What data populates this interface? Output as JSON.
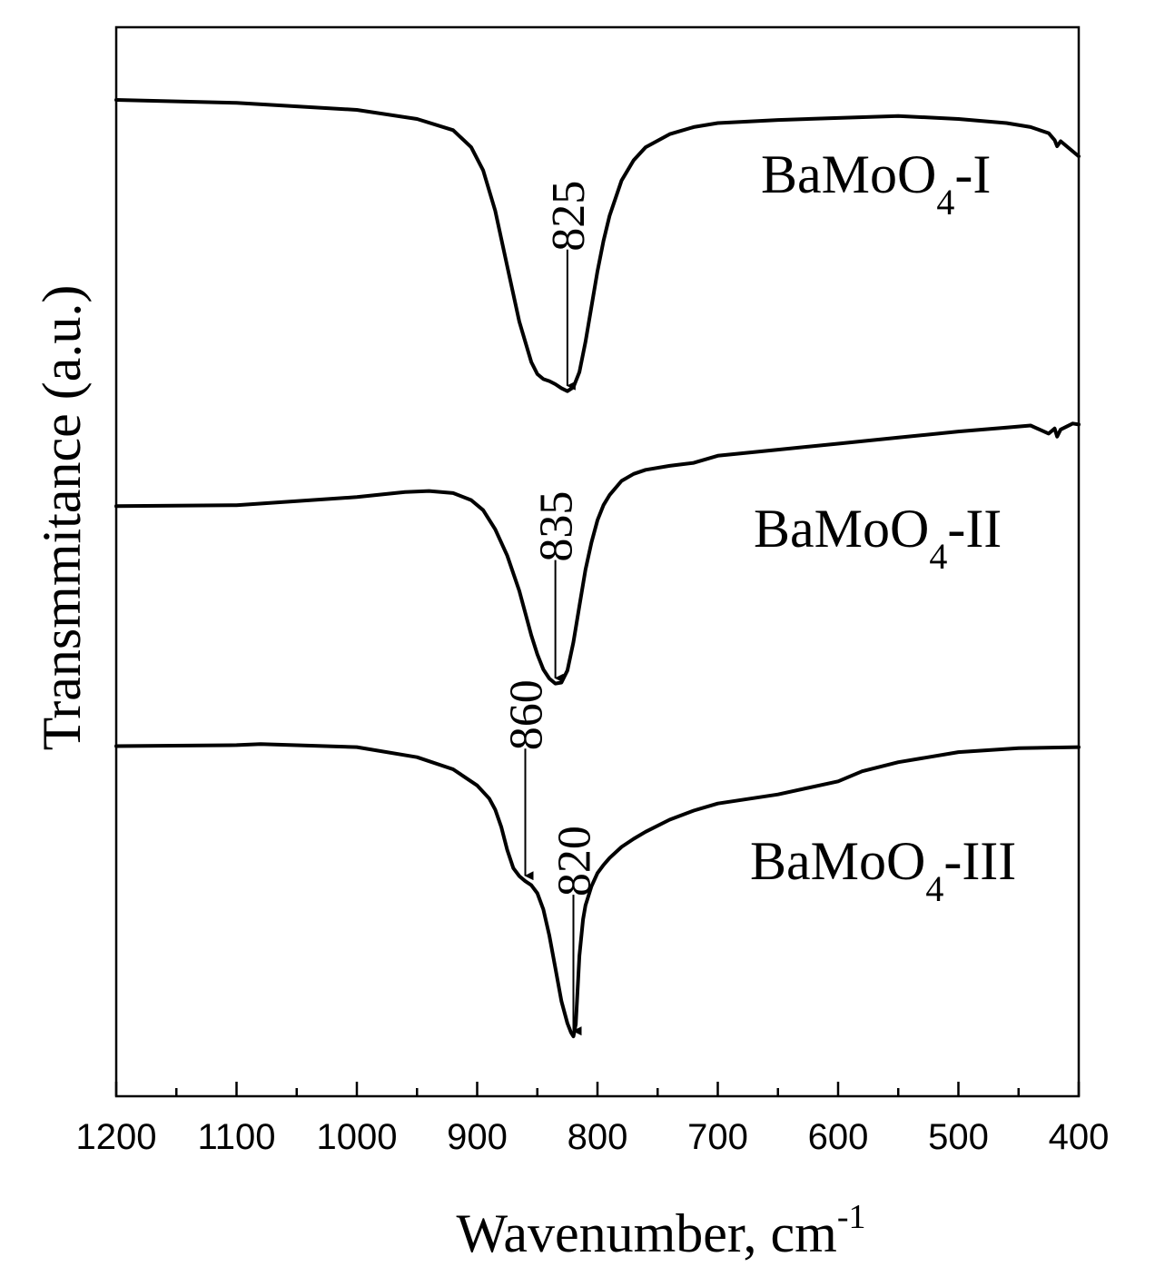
{
  "chart_data": {
    "type": "line",
    "title": "",
    "xlabel": "Wavenumber, cm",
    "xlabel_superscript": "-1",
    "ylabel": "Transmmitance (a.u.)",
    "xlim": [
      1200,
      400
    ],
    "x_reversed": true,
    "x_ticks": [
      1200,
      1100,
      1000,
      900,
      800,
      700,
      600,
      500,
      400
    ],
    "x_minor_step": 50,
    "y_ticks": false,
    "grid": false,
    "ylim": [
      0,
      100
    ],
    "series": [
      {
        "name": "BaMoO",
        "name_subscript": "4",
        "name_suffix": "-I",
        "x": [
          1200,
          1100,
          1000,
          950,
          920,
          905,
          895,
          885,
          875,
          865,
          855,
          850,
          845,
          840,
          835,
          830,
          825,
          820,
          815,
          810,
          805,
          800,
          795,
          790,
          780,
          770,
          760,
          740,
          720,
          700,
          650,
          600,
          550,
          500,
          460,
          440,
          425,
          420,
          418,
          415,
          405,
          400
        ],
        "y": [
          95.5,
          95.2,
          94.5,
          93.6,
          92.5,
          90.8,
          88.5,
          84.5,
          79,
          73.5,
          69.5,
          68.3,
          67.8,
          67.6,
          67.3,
          66.9,
          66.6,
          67,
          68.5,
          71.5,
          75,
          78.5,
          81.5,
          84,
          87.5,
          89.5,
          90.8,
          92.1,
          92.8,
          93.2,
          93.5,
          93.7,
          93.9,
          93.6,
          93.2,
          92.8,
          92.2,
          91.5,
          90.9,
          91.4,
          90.4,
          89.9
        ]
      },
      {
        "name": "BaMoO",
        "name_subscript": "4",
        "name_suffix": "-II",
        "x": [
          1200,
          1100,
          1000,
          960,
          940,
          920,
          905,
          895,
          885,
          875,
          865,
          860,
          855,
          850,
          845,
          840,
          835,
          830,
          825,
          820,
          815,
          810,
          805,
          800,
          795,
          790,
          780,
          770,
          760,
          740,
          720,
          700,
          650,
          600,
          550,
          500,
          460,
          440,
          425,
          420,
          418,
          415,
          405,
          400
        ],
        "y": [
          55.2,
          55.3,
          56.1,
          56.6,
          56.7,
          56.5,
          55.8,
          54.8,
          52.9,
          50.3,
          46.8,
          44.6,
          42.4,
          40.5,
          39,
          38.1,
          37.6,
          37.7,
          38.9,
          41.7,
          45.3,
          48.9,
          51.6,
          53.8,
          55.3,
          56.3,
          57.7,
          58.4,
          58.8,
          59.2,
          59.5,
          60.2,
          60.8,
          61.4,
          62,
          62.6,
          63,
          63.2,
          62.4,
          62.9,
          62.1,
          62.8,
          63.4,
          63.3
        ]
      },
      {
        "name": "BaMoO",
        "name_subscript": "4",
        "name_suffix": "-III",
        "x": [
          1200,
          1100,
          1080,
          1000,
          950,
          920,
          900,
          890,
          885,
          880,
          875,
          870,
          865,
          860,
          855,
          850,
          845,
          840,
          835,
          830,
          825,
          822,
          820,
          818,
          815,
          812,
          810,
          805,
          800,
          795,
          790,
          780,
          770,
          760,
          740,
          720,
          700,
          650,
          600,
          580,
          550,
          500,
          450,
          400
        ],
        "y": [
          31.4,
          31.5,
          31.6,
          31.3,
          30.3,
          29.1,
          27.5,
          26.2,
          25.1,
          23.4,
          21.1,
          19.3,
          18.5,
          18,
          17.6,
          16.8,
          15.2,
          12.6,
          9.4,
          6.1,
          3.9,
          3,
          2.6,
          3.8,
          10.6,
          14.2,
          15.6,
          17.5,
          18.8,
          19.6,
          20.3,
          21.4,
          22.2,
          22.9,
          24.1,
          25,
          25.7,
          26.6,
          27.9,
          28.9,
          29.8,
          30.8,
          31.2,
          31.3
        ]
      }
    ],
    "annotations": [
      {
        "text": "825",
        "series": 0,
        "x": 825
      },
      {
        "text": "835",
        "series": 1,
        "x": 835
      },
      {
        "text": "860",
        "series": 2,
        "x": 860
      },
      {
        "text": "820",
        "series": 2,
        "x": 820
      }
    ]
  }
}
